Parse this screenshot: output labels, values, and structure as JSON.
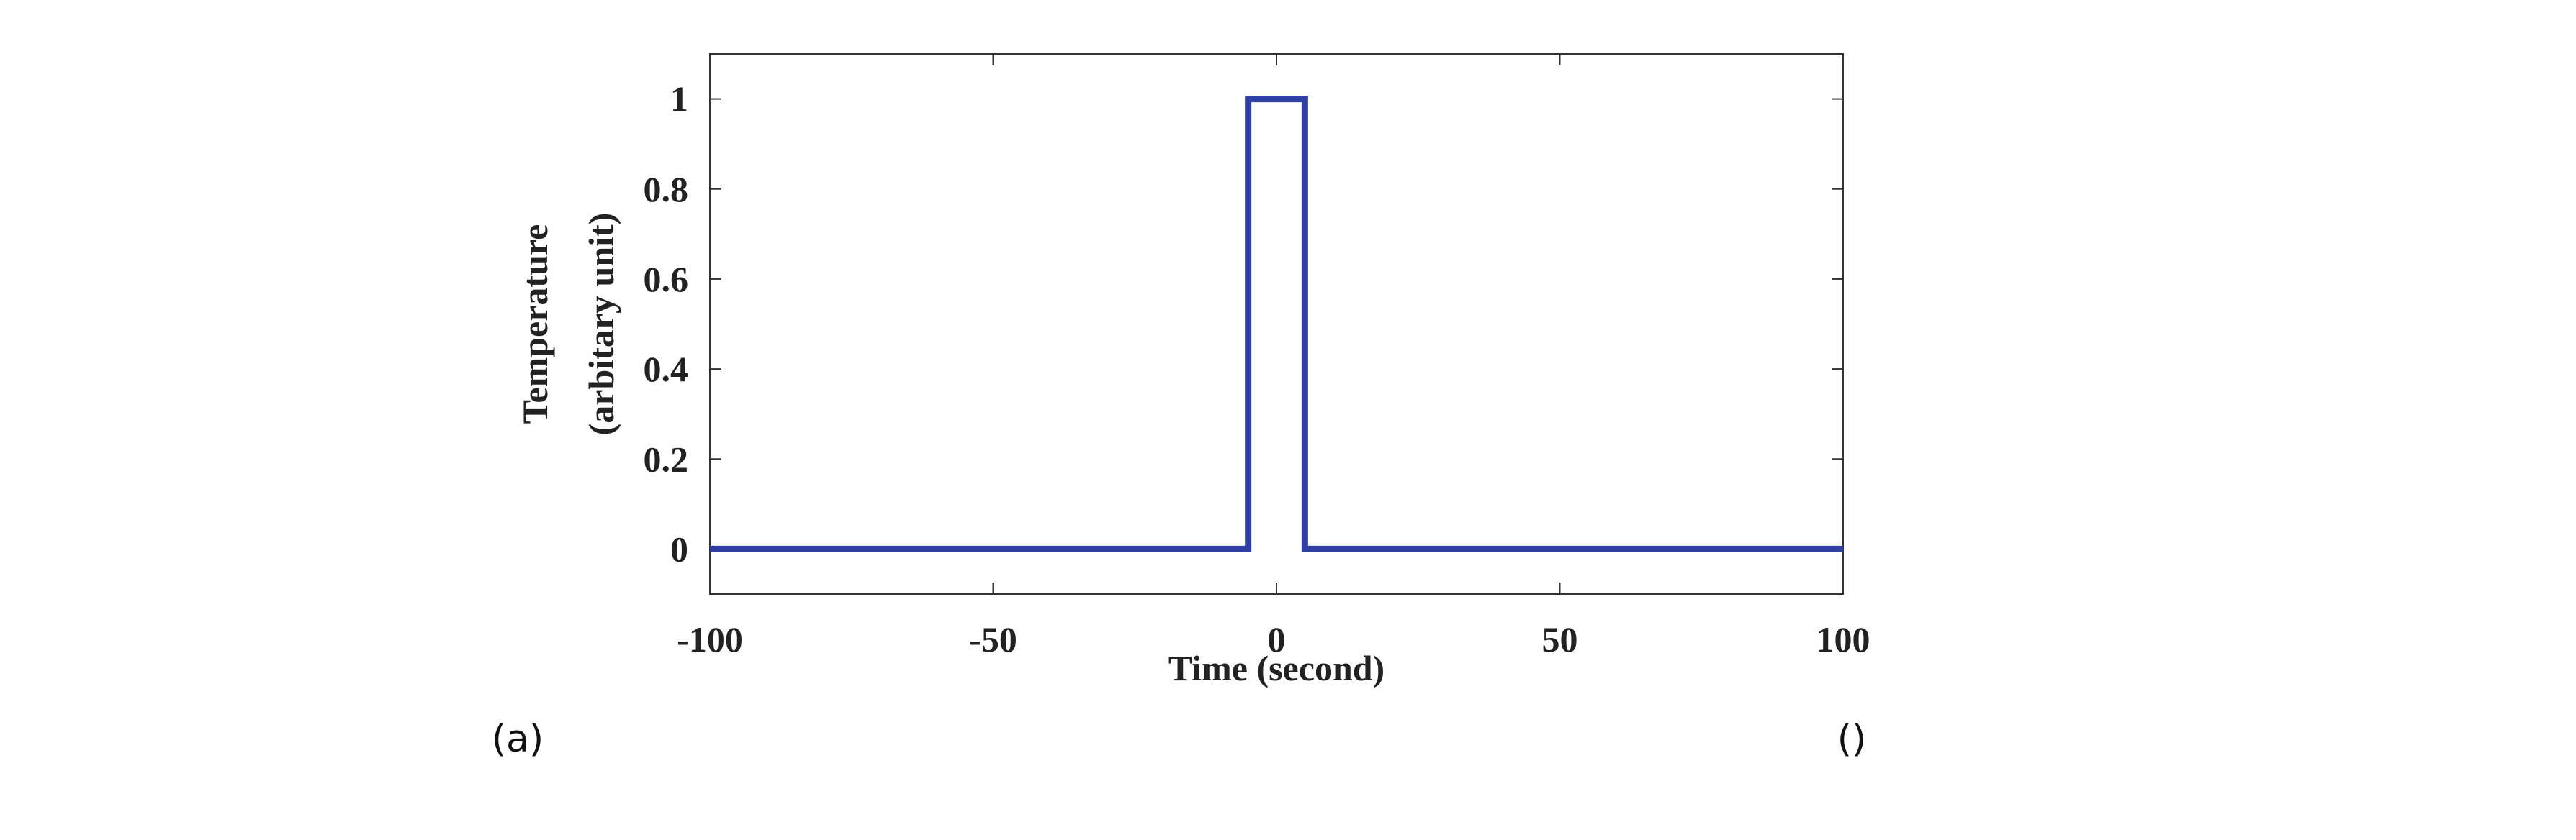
{
  "chart_data": {
    "type": "line",
    "xlabel": "Time (second)",
    "ylabel": [
      "Temperature",
      "(arbitary unit)"
    ],
    "x": [
      -100,
      -5,
      -5,
      5,
      5,
      100
    ],
    "values": [
      0,
      0,
      1,
      1,
      0,
      0
    ],
    "color": "#2f3fa3",
    "xlim": [
      -100,
      100
    ],
    "xticks": [
      -100,
      -50,
      0,
      50,
      100
    ],
    "ylim": [
      -0.1,
      1.1
    ],
    "yticks": [
      0,
      0.2,
      0.4,
      0.6,
      0.8,
      1
    ],
    "grid": false
  },
  "panel_labels": [
    "(a)",
    "()"
  ]
}
